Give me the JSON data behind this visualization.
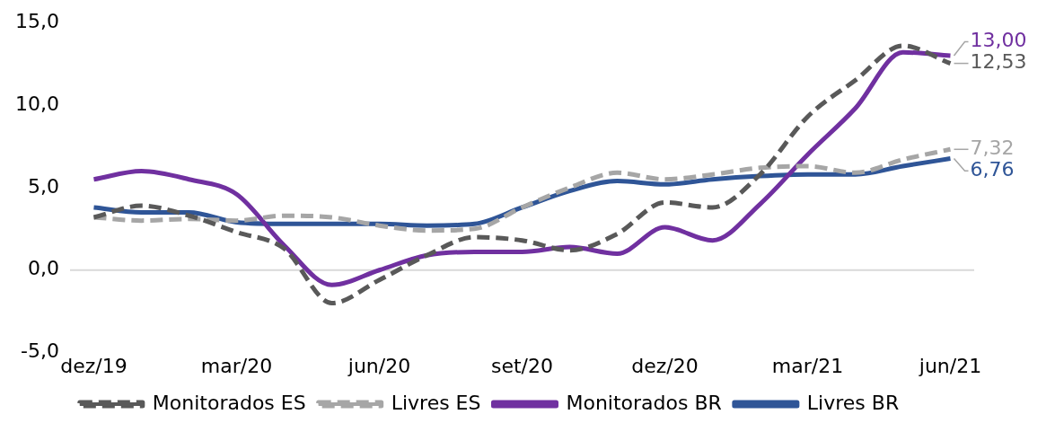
{
  "chart_data": {
    "type": "line",
    "categories": [
      "dez/19",
      null,
      null,
      "mar/20",
      null,
      null,
      "jun/20",
      null,
      null,
      "set/20",
      null,
      null,
      "dez/20",
      null,
      null,
      "mar/21",
      null,
      null,
      "jun/21"
    ],
    "series": [
      {
        "name": "Monitorados ES",
        "color": "#595959",
        "line_style": "dashed",
        "values": [
          3.2,
          3.9,
          3.3,
          2.3,
          1.3,
          -2.0,
          -0.6,
          0.9,
          2.0,
          1.8,
          1.2,
          2.2,
          4.1,
          3.8,
          5.8,
          9.3,
          11.5,
          13.6,
          12.53
        ],
        "value_labels": [
          null,
          null,
          null,
          null,
          null,
          null,
          null,
          null,
          null,
          null,
          null,
          null,
          null,
          null,
          null,
          null,
          null,
          null,
          "12,53"
        ]
      },
      {
        "name": "Livres ES",
        "color": "#a6a6a6",
        "line_style": "dashed",
        "values": [
          3.2,
          3.0,
          3.1,
          3.0,
          3.3,
          3.2,
          2.7,
          2.4,
          2.5,
          3.8,
          5.0,
          5.9,
          5.5,
          5.8,
          6.2,
          6.3,
          5.9,
          6.7,
          7.32
        ],
        "value_labels": [
          null,
          null,
          null,
          null,
          null,
          null,
          null,
          null,
          null,
          null,
          null,
          null,
          null,
          null,
          null,
          null,
          null,
          null,
          "7,32"
        ]
      },
      {
        "name": "Monitorados BR",
        "color": "#7030a0",
        "line_style": "solid",
        "values": [
          5.5,
          6.0,
          5.5,
          4.6,
          1.5,
          -0.9,
          0.0,
          0.9,
          1.1,
          1.1,
          1.4,
          1.0,
          2.6,
          1.8,
          4.0,
          7.0,
          9.8,
          13.2,
          13.0
        ],
        "value_labels": [
          null,
          null,
          null,
          null,
          null,
          null,
          null,
          null,
          null,
          null,
          null,
          null,
          null,
          null,
          null,
          null,
          null,
          null,
          "13,00"
        ]
      },
      {
        "name": "Livres BR",
        "color": "#2f5597",
        "line_style": "solid",
        "values": [
          3.8,
          3.5,
          3.5,
          2.9,
          2.8,
          2.8,
          2.8,
          2.7,
          2.8,
          3.8,
          4.8,
          5.4,
          5.2,
          5.5,
          5.7,
          5.8,
          5.8,
          6.3,
          6.76
        ],
        "value_labels": [
          null,
          null,
          null,
          null,
          null,
          null,
          null,
          null,
          null,
          null,
          null,
          null,
          null,
          null,
          null,
          null,
          null,
          null,
          "6,76"
        ]
      }
    ],
    "ylim": [
      -5,
      15
    ],
    "yticks": [
      {
        "value": -5,
        "label": "-5,0"
      },
      {
        "value": 0,
        "label": "0,0"
      },
      {
        "value": 5,
        "label": "5,0"
      },
      {
        "value": 10,
        "label": "10,0"
      },
      {
        "value": 15,
        "label": "15,0"
      }
    ],
    "ref_lines": [
      {
        "axis": "y",
        "value": 0,
        "color": "#d9d9d9"
      }
    ],
    "grid": false,
    "legend": "bottom"
  }
}
